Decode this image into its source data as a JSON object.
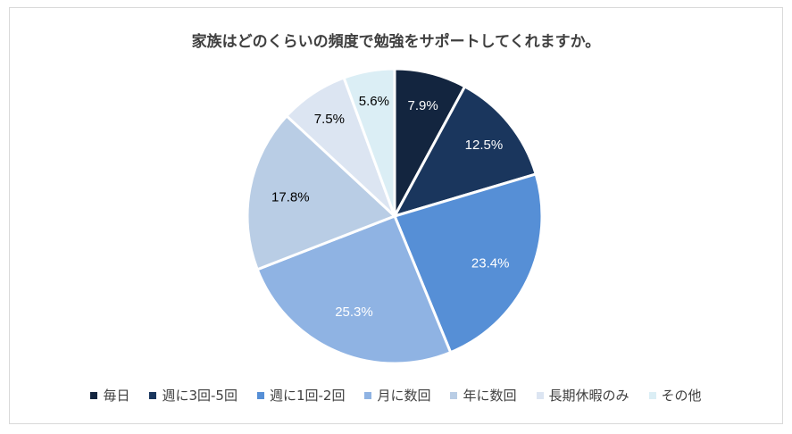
{
  "chart_data": {
    "type": "pie",
    "title": "家族はどのくらいの頻度で勉強をサポートしてくれますか。",
    "categories": [
      "毎日",
      "週に3回-5回",
      "週に1回-2回",
      "月に数回",
      "年に数回",
      "長期休暇のみ",
      "その他"
    ],
    "values": [
      7.9,
      12.5,
      23.4,
      25.3,
      17.8,
      7.5,
      5.6
    ],
    "labels": [
      "7.9%",
      "12.5%",
      "23.4%",
      "25.3%",
      "17.8%",
      "7.5%",
      "5.6%"
    ],
    "colors": [
      "#13253f",
      "#1a365d",
      "#568fd6",
      "#8fb3e3",
      "#b9cde5",
      "#dce5f2",
      "#dbeef5"
    ],
    "label_colors": [
      "#ffffff",
      "#ffffff",
      "#ffffff",
      "#ffffff",
      "#000000",
      "#000000",
      "#000000"
    ],
    "legend_position": "bottom"
  }
}
